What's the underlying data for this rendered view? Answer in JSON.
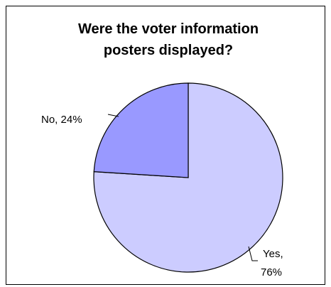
{
  "chart_data": {
    "type": "pie",
    "title_lines": [
      "Were the voter information",
      "posters displayed?"
    ],
    "slices": [
      {
        "label": "Yes",
        "value": 76,
        "display": "Yes,",
        "display2": "76%",
        "color": "#ccccff"
      },
      {
        "label": "No",
        "value": 24,
        "display": "No, 24%",
        "color": "#9999ff"
      }
    ]
  }
}
